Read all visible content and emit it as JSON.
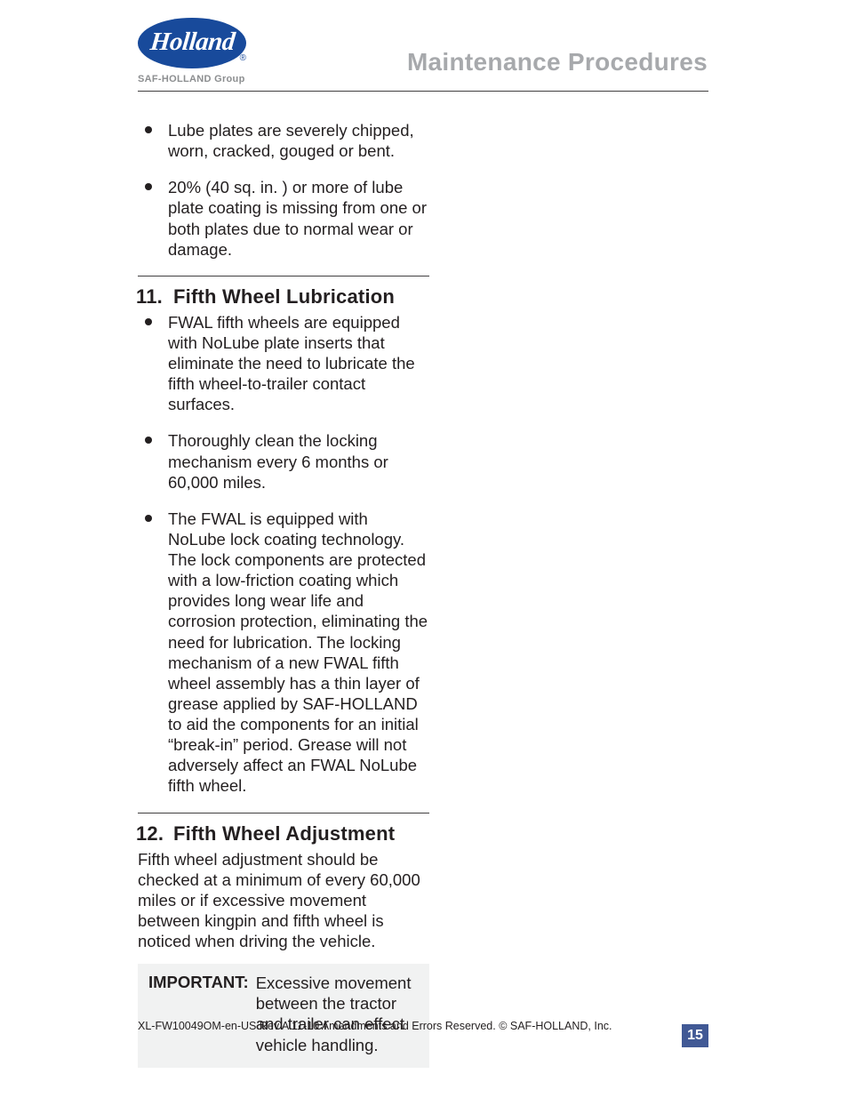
{
  "header": {
    "logo_text": "Holland",
    "logo_reg": "®",
    "logo_sub": "SAF-HOLLAND Group",
    "section_title": "Maintenance Procedures"
  },
  "top_bullets": [
    "Lube plates are severely chipped, worn, cracked, gouged or bent.",
    "20% (40 sq. in. ) or more of lube plate coating is missing from one or both plates due to normal wear or damage."
  ],
  "sec11": {
    "num": "11.",
    "title": "Fifth Wheel Lubrication",
    "bullets": [
      "FWAL fifth wheels are  equipped with NoLube plate inserts that eliminate the need to lubricate the fifth wheel-to-trailer contact surfaces.",
      "Thoroughly clean the locking mechanism every 6 months or 60,000 miles.",
      "The FWAL  is  equipped with NoLube lock coating technology. The lock components are protected with a low-friction coating which provides long wear life and corrosion protection, eliminating the need for  lubrication. The locking mechanism of a new FWAL fifth wheel assembly has a thin layer of grease applied by SAF-HOLLAND to aid the components for an initial “break-in” period. Grease will not adversely affect an FWAL NoLube fifth wheel."
    ]
  },
  "sec12": {
    "num": "12.",
    "title": "Fifth Wheel Adjustment",
    "para": "Fifth wheel adjustment should be checked  at a minimum of every 60,000 miles or if excessive movement between kingpin and fifth wheel is noticed when driving the vehicle.",
    "important_label": "IMPORTANT:",
    "important_text": "Excessive movement between the tractor and trailer can effect vehicle handling."
  },
  "footer": {
    "line": "XL-FW10049OM-en-US Rev A  11-10   Amendments and Errors Reserved.   ©  SAF-HOLLAND, Inc.",
    "page": "15"
  },
  "colors": {
    "brand_blue": "#184a9b",
    "title_gray": "#a7a9ac",
    "rule": "#413f40",
    "box_bg": "#f1f2f2",
    "pagebox_bg": "#415995"
  }
}
